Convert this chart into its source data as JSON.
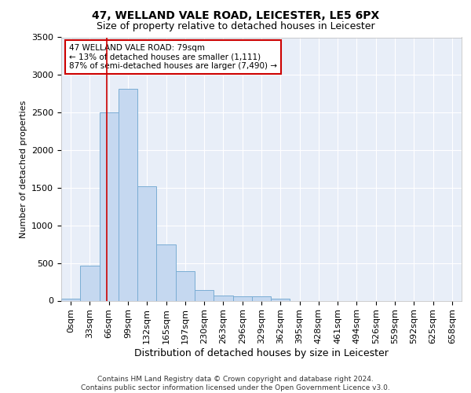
{
  "title": "47, WELLAND VALE ROAD, LEICESTER, LE5 6PX",
  "subtitle": "Size of property relative to detached houses in Leicester",
  "xlabel": "Distribution of detached houses by size in Leicester",
  "ylabel": "Number of detached properties",
  "bar_color": "#c5d8f0",
  "bar_edge_color": "#7aadd4",
  "background_color": "#e8eef8",
  "grid_color": "#ffffff",
  "bin_labels": [
    "0sqm",
    "33sqm",
    "66sqm",
    "99sqm",
    "132sqm",
    "165sqm",
    "197sqm",
    "230sqm",
    "263sqm",
    "296sqm",
    "329sqm",
    "362sqm",
    "395sqm",
    "428sqm",
    "461sqm",
    "494sqm",
    "526sqm",
    "559sqm",
    "592sqm",
    "625sqm",
    "658sqm"
  ],
  "bar_values": [
    30,
    460,
    2500,
    2820,
    1520,
    750,
    390,
    145,
    70,
    55,
    55,
    30,
    0,
    0,
    0,
    0,
    0,
    0,
    0,
    0,
    0
  ],
  "ylim": [
    0,
    3500
  ],
  "yticks": [
    0,
    500,
    1000,
    1500,
    2000,
    2500,
    3000,
    3500
  ],
  "vline_color": "#cc0000",
  "vline_x": 2.39,
  "annotation_text": "47 WELLAND VALE ROAD: 79sqm\n← 13% of detached houses are smaller (1,111)\n87% of semi-detached houses are larger (7,490) →",
  "annotation_box_color": "#cc0000",
  "footer_line1": "Contains HM Land Registry data © Crown copyright and database right 2024.",
  "footer_line2": "Contains public sector information licensed under the Open Government Licence v3.0.",
  "title_fontsize": 10,
  "subtitle_fontsize": 9,
  "ylabel_fontsize": 8,
  "xlabel_fontsize": 9,
  "tick_fontsize": 8,
  "annot_fontsize": 7.5,
  "footer_fontsize": 6.5
}
